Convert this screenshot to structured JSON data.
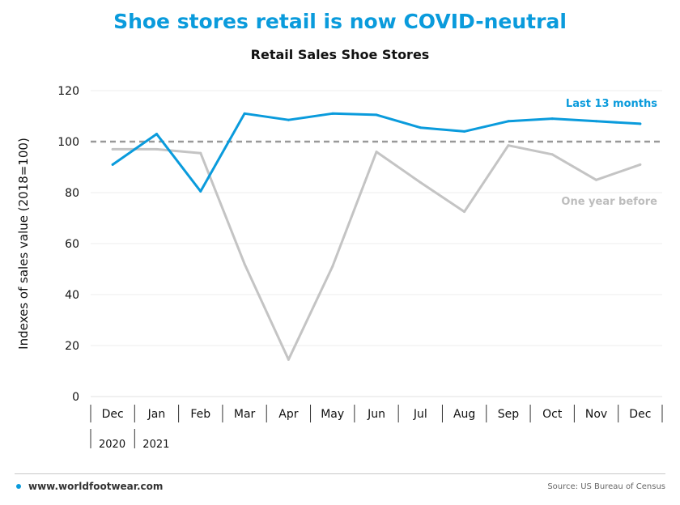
{
  "headline": "Shoe stores retail is now COVID-neutral",
  "footer": {
    "website": "www.worldfootwear.com",
    "source": "Source: US Bureau of Census"
  },
  "colors": {
    "last13": "#0a9bdc",
    "yearBefore": "#c4c4c4",
    "reference": "#999999",
    "title": "#0a9bdc"
  },
  "chart_data": {
    "type": "line",
    "title": "Retail Sales Shoe Stores",
    "ylabel": "Indexes of sales value (2018=100)",
    "xlabel": "",
    "categories": [
      "Dec",
      "Jan",
      "Feb",
      "Mar",
      "Apr",
      "May",
      "Jun",
      "Jul",
      "Aug",
      "Sep",
      "Oct",
      "Nov",
      "Dec"
    ],
    "year_labels": [
      {
        "label": "2020",
        "category_index": 0
      },
      {
        "label": "2021",
        "category_index": 1
      }
    ],
    "ylim": [
      0,
      120
    ],
    "yticks": [
      0,
      20,
      40,
      60,
      80,
      100,
      120
    ],
    "reference_line": {
      "y": 100,
      "style": "dashed"
    },
    "grid": "horizontal",
    "series": [
      {
        "name": "Last 13 months",
        "color": "#0a9bdc",
        "values": [
          91,
          103,
          80.5,
          111,
          108.5,
          111,
          110.5,
          105.5,
          104,
          108,
          109,
          108,
          107
        ]
      },
      {
        "name": "One year before",
        "color": "#c4c4c4",
        "values": [
          97,
          97,
          95.5,
          52,
          14.5,
          51,
          96,
          84,
          72.5,
          98.5,
          95,
          85,
          91
        ]
      }
    ]
  }
}
